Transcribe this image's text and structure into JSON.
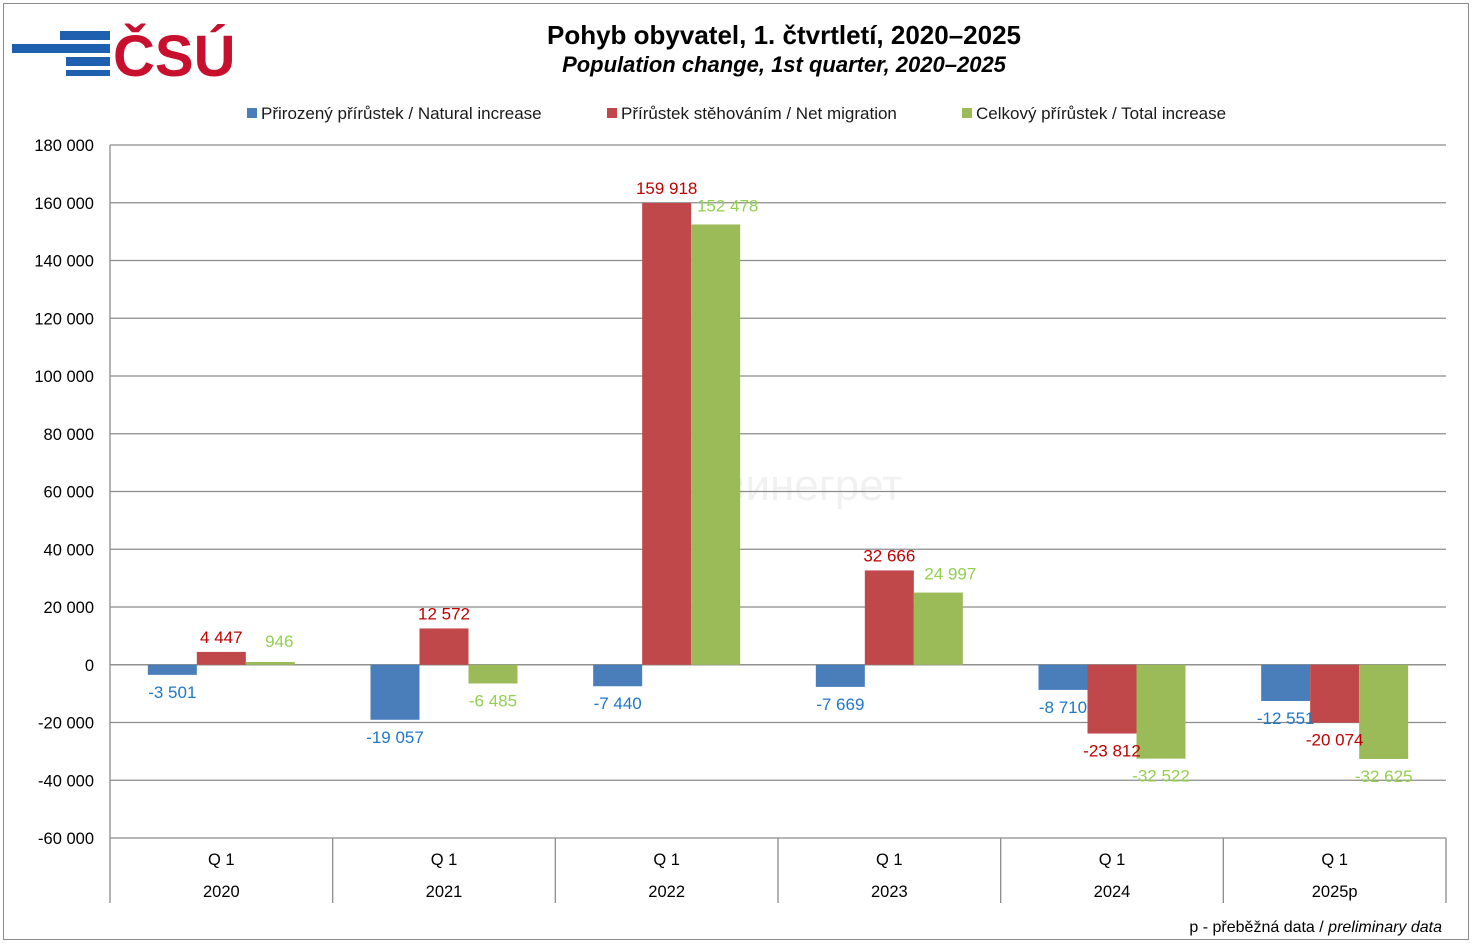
{
  "logo": {
    "text": "ČSÚ",
    "bar_color": "#1f5fb0",
    "text_color": "#c8102e"
  },
  "watermark": "винегрет",
  "footnote": {
    "prefix": "p - přeběžná data / ",
    "italic": "preliminary data"
  },
  "colors": {
    "natural": "#4a7ebb",
    "migration": "#c0474a",
    "total": "#9bbb59",
    "label_natural": "#1f77c8",
    "label_migration": "#c00000",
    "label_total": "#92d050"
  },
  "chart_data": {
    "type": "bar",
    "title": "Pohyb obyvatel, 1. čtvrtletí, 2020–2025",
    "subtitle": "Population change, 1st quarter, 2020–2025",
    "categories": [
      "Q 1",
      "Q 1",
      "Q 1",
      "Q 1",
      "Q 1",
      "Q 1"
    ],
    "category_groups": [
      "2020",
      "2021",
      "2022",
      "2023",
      "2024",
      "2025p"
    ],
    "series": [
      {
        "name": "Přirozený přírůstek / Natural increase",
        "values": [
          -3501,
          -19057,
          -7440,
          -7669,
          -8710,
          -12551
        ],
        "labels": [
          "-3 501",
          "-19 057",
          "-7 440",
          "-7 669",
          "-8 710",
          "-12 551"
        ]
      },
      {
        "name": "Přírůstek stěhováním / Net migration",
        "values": [
          4447,
          12572,
          159918,
          32666,
          -23812,
          -20074
        ],
        "labels": [
          "4 447",
          "12 572",
          "159 918",
          "32 666",
          "-23 812",
          "-20 074"
        ]
      },
      {
        "name": "Celkový přírůstek / Total increase",
        "values": [
          946,
          -6485,
          152478,
          24997,
          -32522,
          -32625
        ],
        "labels": [
          "946",
          "-6 485",
          "152 478",
          "24 997",
          "-32 522",
          "-32 625"
        ]
      }
    ],
    "ylim": [
      -60000,
      180000
    ],
    "yticks": [
      180000,
      160000,
      140000,
      120000,
      100000,
      80000,
      60000,
      40000,
      20000,
      0,
      -20000,
      -40000,
      -60000
    ],
    "ytick_labels": [
      "180 000",
      "160 000",
      "140 000",
      "120 000",
      "100 000",
      "80 000",
      "60 000",
      "40 000",
      "20 000",
      "0",
      "-20 000",
      "-40 000",
      "-60 000"
    ],
    "grid": true,
    "legend_position": "top"
  }
}
